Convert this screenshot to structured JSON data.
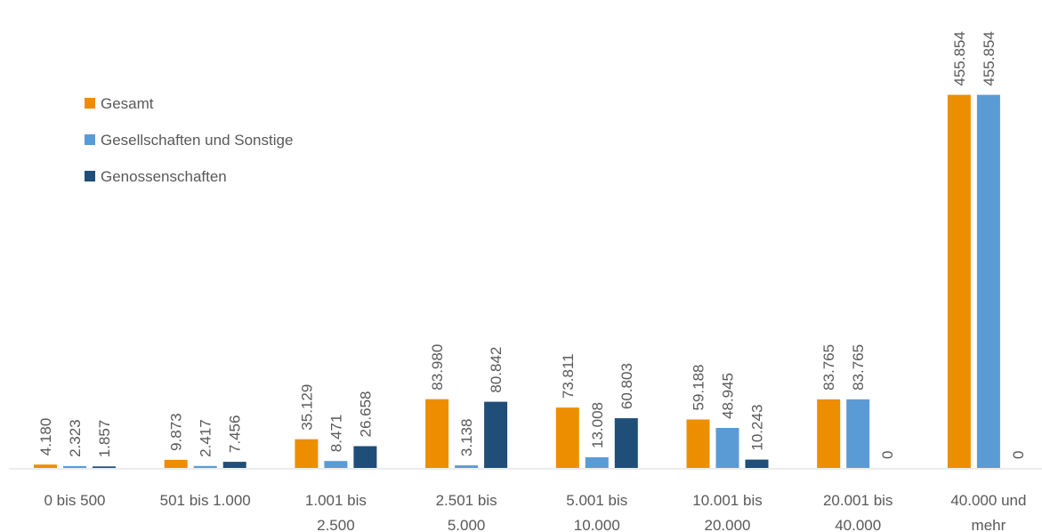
{
  "chart_data": {
    "type": "bar",
    "title": "",
    "xlabel": "",
    "ylabel": "",
    "ylim": [
      0,
      470000
    ],
    "grid": false,
    "legend_position": "top-left",
    "categories": [
      [
        "0 bis 500"
      ],
      [
        "501 bis 1.000"
      ],
      [
        "1.001 bis",
        "2.500"
      ],
      [
        "2.501 bis",
        "5.000"
      ],
      [
        "5.001 bis",
        "10.000"
      ],
      [
        "10.001 bis",
        "20.000"
      ],
      [
        "20.001 bis",
        "40.000"
      ],
      [
        "40.000 und",
        "mehr"
      ]
    ],
    "series": [
      {
        "name": "Gesamt",
        "color": "#ED8E00",
        "values": [
          4180,
          9873,
          35129,
          83980,
          73811,
          59188,
          83765,
          455854
        ],
        "labels": [
          "4.180",
          "9.873",
          "35.129",
          "83.980",
          "73.811",
          "59.188",
          "83.765",
          "455.854"
        ]
      },
      {
        "name": "Gesellschaften und Sonstige",
        "color": "#5B9BD5",
        "values": [
          2323,
          2417,
          8471,
          3138,
          13008,
          48945,
          83765,
          455854
        ],
        "labels": [
          "2.323",
          "2.417",
          "8.471",
          "3.138",
          "13.008",
          "48.945",
          "83.765",
          "455.854"
        ]
      },
      {
        "name": "Genossenschaften",
        "color": "#1F4E79",
        "values": [
          1857,
          7456,
          26658,
          80842,
          60803,
          10243,
          0,
          0
        ],
        "labels": [
          "1.857",
          "7.456",
          "26.658",
          "80.842",
          "60.803",
          "10.243",
          "0",
          "0"
        ]
      }
    ]
  }
}
